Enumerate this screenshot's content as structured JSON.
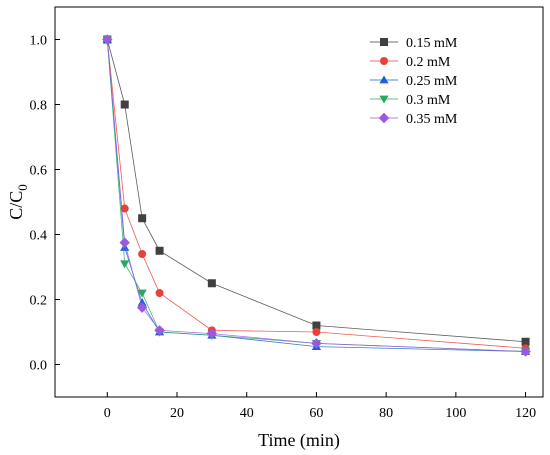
{
  "chart_data": {
    "type": "line",
    "title": "",
    "xlabel": "Time (min)",
    "ylabel": "C/C",
    "ylabel_subscript": "0",
    "xlim": [
      -15,
      125
    ],
    "ylim": [
      -0.1,
      1.1
    ],
    "xticks": [
      0,
      20,
      40,
      60,
      80,
      100,
      120
    ],
    "yticks": [
      0.0,
      0.2,
      0.4,
      0.6,
      0.8,
      1.0
    ],
    "ytick_labels": [
      "0.0",
      "0.2",
      "0.4",
      "0.6",
      "0.8",
      "1.0"
    ],
    "grid": false,
    "legend_position": "top-right",
    "series": [
      {
        "name": "0.15 mM",
        "marker": "square",
        "color": "#404040",
        "x": [
          0,
          5,
          10,
          15,
          30,
          60,
          120
        ],
        "y": [
          1.0,
          0.8,
          0.45,
          0.35,
          0.25,
          0.12,
          0.07
        ]
      },
      {
        "name": "0.2 mM",
        "marker": "circle",
        "color": "#e8413a",
        "x": [
          0,
          5,
          10,
          15,
          30,
          60,
          120
        ],
        "y": [
          1.0,
          0.48,
          0.34,
          0.22,
          0.105,
          0.1,
          0.05
        ]
      },
      {
        "name": "0.25 mM",
        "marker": "triangle-up",
        "color": "#1f5fd6",
        "x": [
          0,
          5,
          10,
          15,
          30,
          60,
          120
        ],
        "y": [
          1.0,
          0.36,
          0.19,
          0.1,
          0.09,
          0.055,
          0.04
        ]
      },
      {
        "name": "0.3 mM",
        "marker": "triangle-down",
        "color": "#2aa860",
        "x": [
          0,
          5,
          10,
          15,
          30,
          60,
          120
        ],
        "y": [
          1.0,
          0.31,
          0.22,
          0.1,
          0.09,
          0.065,
          0.04
        ]
      },
      {
        "name": "0.35 mM",
        "marker": "diamond",
        "color": "#9b59e0",
        "x": [
          0,
          5,
          10,
          15,
          30,
          60,
          120
        ],
        "y": [
          1.0,
          0.375,
          0.175,
          0.105,
          0.095,
          0.065,
          0.04
        ]
      }
    ]
  }
}
